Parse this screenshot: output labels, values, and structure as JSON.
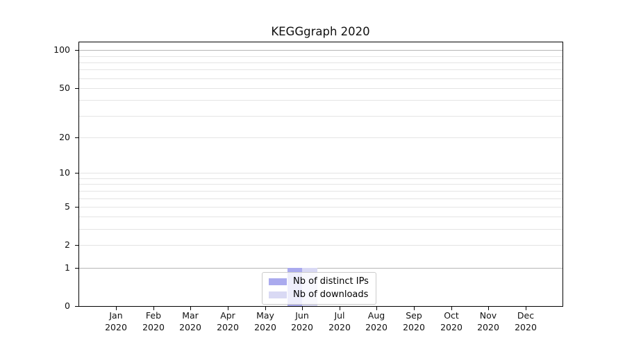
{
  "title": "KEGGgraph 2020",
  "chart_data": {
    "type": "bar",
    "title": "KEGGgraph 2020",
    "categories": [
      "Jan 2020",
      "Feb 2020",
      "Mar 2020",
      "Apr 2020",
      "May 2020",
      "Jun 2020",
      "Jul 2020",
      "Aug 2020",
      "Sep 2020",
      "Oct 2020",
      "Nov 2020",
      "Dec 2020"
    ],
    "x_tick_month_labels": [
      "Jan",
      "Feb",
      "Mar",
      "Apr",
      "May",
      "Jun",
      "Jul",
      "Aug",
      "Sep",
      "Oct",
      "Nov",
      "Dec"
    ],
    "x_tick_year_label": "2020",
    "series": [
      {
        "name": "Nb of distinct IPs",
        "color": "#aaaaee",
        "values": [
          0,
          0,
          0,
          0,
          0,
          1,
          0,
          0,
          0,
          0,
          0,
          0
        ]
      },
      {
        "name": "Nb of downloads",
        "color": "#d9d9f4",
        "values": [
          0,
          0,
          0,
          0,
          0,
          1,
          0,
          0,
          0,
          0,
          0,
          0
        ]
      }
    ],
    "xlabel": "",
    "ylabel": "",
    "y_axis": {
      "scale": "log10(1+value)",
      "major_ticks": [
        0,
        1,
        2,
        5,
        10,
        20,
        50,
        100
      ],
      "minor_gridlines": [
        3,
        4,
        6,
        7,
        8,
        9,
        30,
        40,
        60,
        70,
        80,
        90
      ],
      "emphasized_gridlines": [
        1,
        100
      ],
      "top_value": 115
    },
    "grid": true,
    "legend_position": "lower center (inside plot)"
  },
  "colors": {
    "background": "#ffffff",
    "spine": "#000000",
    "gridline": "#e4e4e4",
    "gridline_emphasized": "#b6b6b6",
    "bar_distinct_ips": "#aaaaee",
    "bar_downloads": "#d9d9f4",
    "legend_border": "#cbcbcb",
    "text": "#111111"
  }
}
